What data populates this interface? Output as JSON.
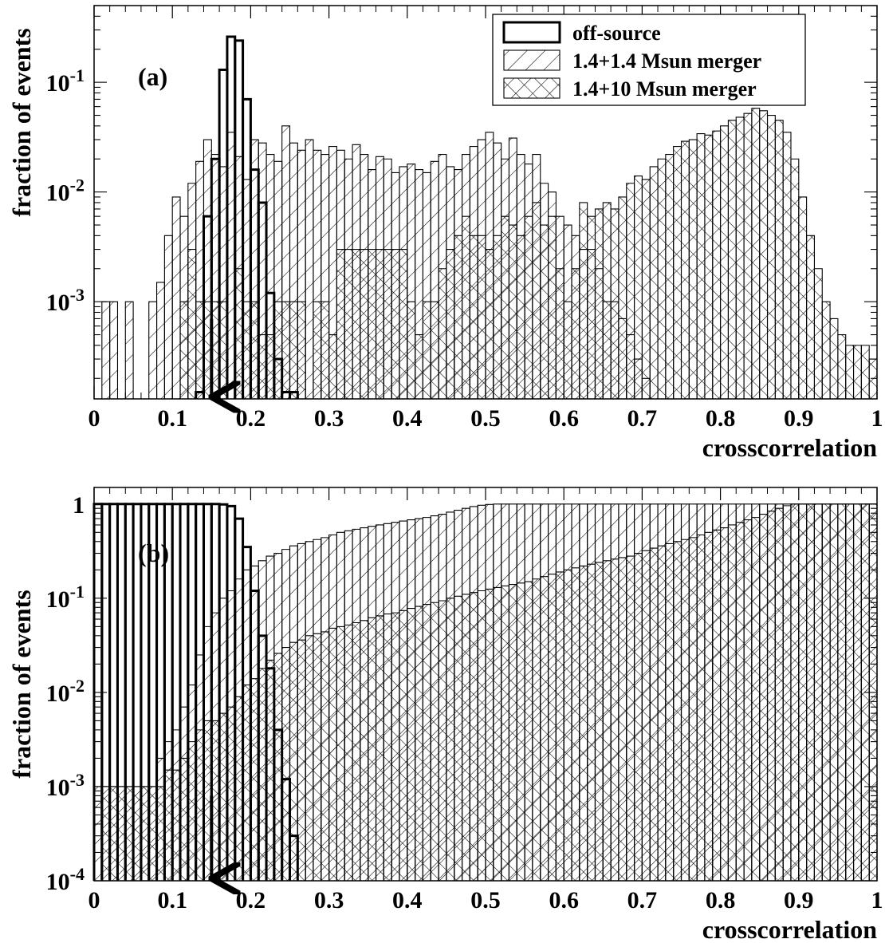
{
  "figure": {
    "x_ticks": [
      "0",
      "0.1",
      "0.2",
      "0.3",
      "0.4",
      "0.5",
      "0.6",
      "0.7",
      "0.8",
      "0.9",
      "1"
    ]
  },
  "chart_data": [
    {
      "type": "histogram",
      "panel_label": "(a)",
      "xlabel": "crosscorrelation",
      "ylabel": "fraction of events",
      "xlim": [
        0,
        1
      ],
      "ylim": [
        0.00013,
        0.5
      ],
      "log_y": true,
      "y_ticks": [
        {
          "value": 0.1,
          "mantissa": "10",
          "exp": "-1"
        },
        {
          "value": 0.01,
          "mantissa": "10",
          "exp": "-2"
        },
        {
          "value": 0.001,
          "mantissa": "10",
          "exp": "-3"
        }
      ],
      "bin_edges": {
        "start": 0,
        "width": 0.01,
        "count": 100
      },
      "marker_arrow": {
        "x": 0.15,
        "y_top": 0.0007,
        "y_bottom": 0.00014
      },
      "legend": {
        "position": "top-right",
        "entries": [
          {
            "series": 0,
            "label": "off-source"
          },
          {
            "series": 1,
            "label": "1.4+1.4 Msun merger"
          },
          {
            "series": 2,
            "label": "1.4+10 Msun merger"
          }
        ]
      },
      "series": [
        {
          "name": "off-source",
          "fill": "none",
          "values": [
            0,
            0,
            0,
            0,
            0,
            0,
            0,
            0,
            0,
            0,
            0,
            0,
            0,
            0.00015,
            0.006,
            0.02,
            0.13,
            0.26,
            0.24,
            0.07,
            0.016,
            0.008,
            0.0012,
            0.0003,
            0.00015,
            0.00015,
            0,
            0,
            0,
            0,
            0,
            0,
            0,
            0,
            0,
            0,
            0,
            0,
            0,
            0,
            0,
            0,
            0,
            0,
            0,
            0,
            0,
            0,
            0,
            0,
            0,
            0,
            0,
            0,
            0,
            0,
            0,
            0,
            0,
            0,
            0,
            0,
            0,
            0,
            0,
            0,
            0,
            0,
            0,
            0,
            0,
            0,
            0,
            0,
            0,
            0,
            0,
            0,
            0,
            0,
            0,
            0,
            0,
            0,
            0,
            0,
            0,
            0,
            0,
            0,
            0,
            0,
            0,
            0,
            0,
            0,
            0,
            0,
            0,
            0
          ]
        },
        {
          "name": "1.4+1.4 Msun merger",
          "fill": "hatch-diag",
          "values": [
            0,
            0.001,
            0.001,
            0,
            0.001,
            0,
            0,
            0.001,
            0.0015,
            0.004,
            0.009,
            0.006,
            0.012,
            0.019,
            0.03,
            0.022,
            0.017,
            0.035,
            0.021,
            0.013,
            0.03,
            0.028,
            0.022,
            0.019,
            0.04,
            0.028,
            0.024,
            0.03,
            0.024,
            0.022,
            0.026,
            0.024,
            0.02,
            0.027,
            0.022,
            0.016,
            0.021,
            0.02,
            0.015,
            0.017,
            0.018,
            0.016,
            0.015,
            0.019,
            0.022,
            0.017,
            0.016,
            0.022,
            0.026,
            0.03,
            0.035,
            0.028,
            0.02,
            0.031,
            0.022,
            0.018,
            0.022,
            0.012,
            0.01,
            0.006,
            0.005,
            0.004,
            0.003,
            0.003,
            0.002,
            0.001,
            0.001,
            0.0007,
            0.0005,
            0.0003,
            0.0002,
            0,
            0,
            0,
            0,
            0,
            0,
            0,
            0,
            0,
            0,
            0,
            0,
            0,
            0,
            0,
            0,
            0,
            0,
            0,
            0,
            0,
            0,
            0,
            0,
            0,
            0,
            0,
            0,
            0
          ]
        },
        {
          "name": "1.4+10 Msun merger",
          "fill": "hatch-cross",
          "values": [
            0,
            0,
            0,
            0,
            0,
            0,
            0,
            0,
            0,
            0,
            0,
            0.001,
            0.003,
            0.001,
            0.001,
            0.001,
            0.001,
            0,
            0.002,
            0.001,
            0.001,
            0.0005,
            0.0005,
            0.001,
            0.001,
            0.001,
            0.001,
            0,
            0.001,
            0.001,
            0.0005,
            0.003,
            0.003,
            0.003,
            0.003,
            0.003,
            0.003,
            0.003,
            0.003,
            0.003,
            0.001,
            0.0005,
            0.001,
            0.001,
            0.002,
            0.003,
            0.004,
            0.006,
            0.004,
            0.004,
            0.003,
            0.004,
            0.006,
            0.005,
            0.004,
            0.006,
            0.008,
            0.005,
            0.006,
            0.002,
            0.001,
            0.002,
            0.008,
            0.006,
            0.007,
            0.008,
            0.007,
            0.009,
            0.012,
            0.014,
            0.013,
            0.017,
            0.02,
            0.022,
            0.026,
            0.029,
            0.03,
            0.034,
            0.033,
            0.036,
            0.04,
            0.045,
            0.048,
            0.052,
            0.058,
            0.055,
            0.05,
            0.045,
            0.035,
            0.02,
            0.009,
            0.004,
            0.002,
            0.001,
            0.0007,
            0.0005,
            0.0004,
            0.0004,
            0.0004,
            0.0003
          ]
        }
      ]
    },
    {
      "type": "histogram",
      "panel_label": "(b)",
      "xlabel": "crosscorrelation",
      "ylabel": "fraction of events",
      "xlim": [
        0,
        1
      ],
      "ylim": [
        0.0001,
        1.5
      ],
      "log_y": true,
      "y_ticks": [
        {
          "value": 1,
          "mantissa": "1",
          "exp": ""
        },
        {
          "value": 0.1,
          "mantissa": "10",
          "exp": "-1"
        },
        {
          "value": 0.01,
          "mantissa": "10",
          "exp": "-2"
        },
        {
          "value": 0.001,
          "mantissa": "10",
          "exp": "-3"
        },
        {
          "value": 0.0001,
          "mantissa": "10",
          "exp": "-4"
        }
      ],
      "bin_edges": {
        "start": 0,
        "width": 0.01,
        "count": 100
      },
      "marker_arrow": {
        "x": 0.15,
        "y_top": 0.0008,
        "y_bottom": 0.00011
      },
      "series": [
        {
          "name": "off-source",
          "fill": "none",
          "values": [
            1,
            1,
            1,
            1,
            1,
            1,
            1,
            1,
            1,
            1,
            1,
            1,
            1,
            1,
            1,
            1,
            0.99,
            0.95,
            0.7,
            0.35,
            0.12,
            0.04,
            0.018,
            0.004,
            0.0012,
            0.0003,
            0,
            0,
            0,
            0,
            0,
            0,
            0,
            0,
            0,
            0,
            0,
            0,
            0,
            0,
            0,
            0,
            0,
            0,
            0,
            0,
            0,
            0,
            0,
            0,
            0,
            0,
            0,
            0,
            0,
            0,
            0,
            0,
            0,
            0,
            0,
            0,
            0,
            0,
            0,
            0,
            0,
            0,
            0,
            0,
            0,
            0,
            0,
            0,
            0,
            0,
            0,
            0,
            0,
            0,
            0,
            0,
            0,
            0,
            0,
            0,
            0,
            0,
            0,
            0,
            0,
            0,
            0,
            0,
            0,
            0,
            0,
            0,
            0,
            0
          ]
        },
        {
          "name": "1.4+1.4 Msun merger",
          "fill": "hatch-diag",
          "values": [
            0.001,
            0.001,
            0.001,
            0.001,
            0.001,
            0.001,
            0.001,
            0.001,
            0.002,
            0.003,
            0.004,
            0.007,
            0.012,
            0.025,
            0.05,
            0.07,
            0.1,
            0.12,
            0.16,
            0.2,
            0.22,
            0.25,
            0.28,
            0.3,
            0.33,
            0.36,
            0.38,
            0.4,
            0.42,
            0.44,
            0.47,
            0.5,
            0.52,
            0.54,
            0.56,
            0.58,
            0.6,
            0.62,
            0.64,
            0.66,
            0.68,
            0.7,
            0.72,
            0.75,
            0.78,
            0.82,
            0.86,
            0.9,
            0.94,
            0.97,
            0.99,
            1,
            1,
            1,
            1,
            1,
            1,
            1,
            1,
            1,
            1,
            1,
            1,
            1,
            1,
            1,
            1,
            1,
            1,
            1,
            1,
            1,
            1,
            1,
            1,
            1,
            1,
            1,
            1,
            1,
            1,
            1,
            1,
            1,
            1,
            1,
            1,
            1,
            1,
            1,
            1,
            1,
            1,
            1,
            1,
            1,
            1,
            1,
            1,
            1
          ]
        },
        {
          "name": "1.4+10 Msun merger",
          "fill": "hatch-cross",
          "values": [
            0,
            0.001,
            0.001,
            0.001,
            0.001,
            0.001,
            0.001,
            0.001,
            0.001,
            0.0015,
            0.0015,
            0.002,
            0.003,
            0.004,
            0.005,
            0.005,
            0.006,
            0.007,
            0.009,
            0.012,
            0.014,
            0.018,
            0.022,
            0.026,
            0.03,
            0.034,
            0.036,
            0.04,
            0.042,
            0.044,
            0.048,
            0.05,
            0.052,
            0.055,
            0.058,
            0.062,
            0.065,
            0.068,
            0.07,
            0.074,
            0.078,
            0.082,
            0.086,
            0.09,
            0.094,
            0.1,
            0.105,
            0.11,
            0.115,
            0.12,
            0.125,
            0.13,
            0.135,
            0.14,
            0.145,
            0.15,
            0.16,
            0.17,
            0.18,
            0.19,
            0.2,
            0.21,
            0.22,
            0.23,
            0.24,
            0.25,
            0.26,
            0.27,
            0.28,
            0.3,
            0.32,
            0.34,
            0.36,
            0.38,
            0.4,
            0.42,
            0.44,
            0.47,
            0.5,
            0.53,
            0.56,
            0.6,
            0.64,
            0.68,
            0.72,
            0.78,
            0.84,
            0.9,
            0.96,
            1,
            1,
            1,
            1,
            1,
            1,
            1,
            1,
            1,
            1,
            1
          ]
        }
      ]
    }
  ]
}
